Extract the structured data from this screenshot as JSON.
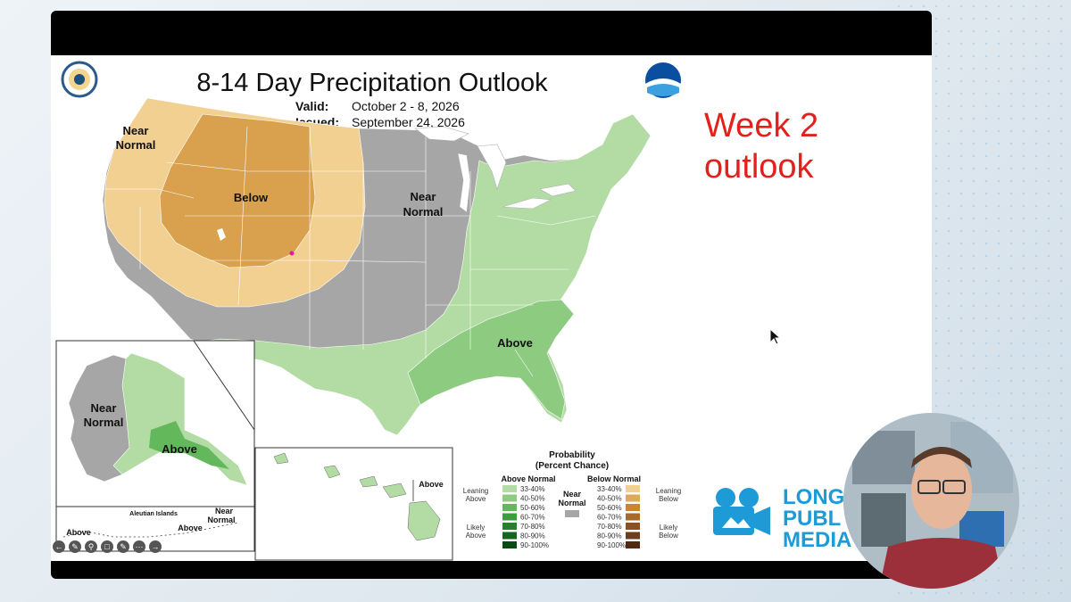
{
  "map": {
    "title": "8-14 Day Precipitation Outlook",
    "valid_label": "Valid:",
    "valid_value": "October 2 - 8, 2026",
    "issued_label": "Issued:",
    "issued_value": "September 24, 2026",
    "regions": {
      "nw_near": [
        "Near",
        "Normal"
      ],
      "below": "Below",
      "central_near": [
        "Near",
        "Normal"
      ],
      "above": "Above",
      "ak_near": [
        "Near",
        "Normal"
      ],
      "ak_above": "Above",
      "aleutian_title": "Aleutian Islands",
      "aleutian_near": [
        "Near",
        "Normal"
      ],
      "aleutian_above_left": "Above",
      "aleutian_above_right": "Above",
      "hawaii_above": "Above"
    }
  },
  "annotation": {
    "line1": "Week 2",
    "line2": "outlook"
  },
  "legend": {
    "title_line1": "Probability",
    "title_line2": "(Percent Chance)",
    "above_header": "Above Normal",
    "below_header": "Below Normal",
    "near_header": [
      "Near",
      "Normal"
    ],
    "leaning_above": [
      "Leaning",
      "Above"
    ],
    "likely_above": [
      "Likely",
      "Above"
    ],
    "leaning_below": [
      "Leaning",
      "Below"
    ],
    "likely_below": [
      "Likely",
      "Below"
    ],
    "bins": [
      "33-40%",
      "40-50%",
      "50-60%",
      "60-70%",
      "70-80%",
      "80-90%",
      "90-100%"
    ],
    "above_colors": [
      "#b3dca4",
      "#8ccb80",
      "#64b85c",
      "#3c9e3a",
      "#25822a",
      "#13661d",
      "#084914"
    ],
    "below_colors": [
      "#f2d092",
      "#e0a95a",
      "#c98535",
      "#a86a2a",
      "#8a5222",
      "#6d3e1a",
      "#4f2a10"
    ],
    "near_color": "#a6a6a6"
  },
  "brand": {
    "line1": "LONG",
    "line2": "PUBL",
    "line3": "MEDIA"
  },
  "toolbar": {
    "icons": [
      "back-arrow-icon",
      "pen-icon",
      "zoom-icon",
      "captions-icon",
      "edit-slide-icon",
      "more-icon",
      "forward-arrow-icon"
    ]
  }
}
